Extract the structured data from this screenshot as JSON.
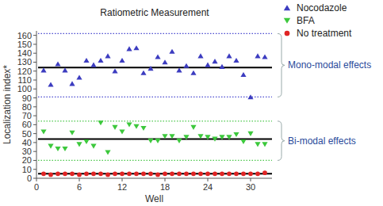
{
  "chart_data": {
    "type": "scatter",
    "title": "Ratiometric Measurement",
    "x_label": "Well",
    "y_label": "Localization index*",
    "x": [
      1,
      2,
      3,
      4,
      5,
      6,
      7,
      8,
      9,
      10,
      11,
      12,
      13,
      14,
      15,
      16,
      17,
      18,
      19,
      20,
      21,
      22,
      23,
      24,
      25,
      26,
      27,
      28,
      29,
      30,
      31,
      32
    ],
    "series": [
      {
        "name": "Nocodazole",
        "color": "#3c3cc0",
        "marker": "triangle-up",
        "values": [
          121,
          105,
          128,
          121,
          106,
          113,
          132,
          127,
          132,
          137,
          120,
          132,
          145,
          146,
          118,
          123,
          136,
          130,
          142,
          121,
          126,
          118,
          137,
          127,
          131,
          125,
          137,
          132,
          116,
          91,
          137,
          136
        ]
      },
      {
        "name": "BFA",
        "color": "#3cc83c",
        "marker": "triangle-down",
        "values": [
          52,
          36,
          33,
          33,
          51,
          38,
          41,
          36,
          62,
          29,
          57,
          52,
          60,
          58,
          56,
          42,
          42,
          47,
          47,
          42,
          46,
          57,
          47,
          46,
          44,
          46,
          46,
          49,
          41,
          50,
          38,
          38
        ]
      },
      {
        "name": "No treatment",
        "color": "#e02424",
        "marker": "circle",
        "values": [
          5,
          4,
          5,
          5,
          5,
          4,
          5,
          5,
          5,
          4,
          5,
          5,
          5,
          5,
          5,
          5,
          4,
          5,
          5,
          5,
          5,
          5,
          5,
          5,
          5,
          5,
          5,
          5,
          5,
          5,
          5,
          6
        ]
      }
    ],
    "lines": [
      {
        "value": 162,
        "color": "#4a4ad0",
        "line_style": "dotted"
      },
      {
        "value": 124,
        "color": "#000000",
        "line_style": "solid"
      },
      {
        "value": 91,
        "color": "#4a4ad0",
        "line_style": "dotted"
      },
      {
        "value": 64,
        "color": "#4cc84c",
        "line_style": "dotted"
      },
      {
        "value": 44,
        "color": "#000000",
        "line_style": "solid"
      },
      {
        "value": 20,
        "color": "#4cc84c",
        "line_style": "dotted"
      },
      {
        "value": 5,
        "color": "#000000",
        "line_style": "solid"
      }
    ],
    "annotations": [
      {
        "text": "Mono-modal effects",
        "from": 91,
        "to": 162,
        "color": "#2a4a9b"
      },
      {
        "text": "Bi-modal effects",
        "from": 20,
        "to": 64,
        "color": "#2a4a9b"
      }
    ],
    "xlim": [
      0,
      33
    ],
    "xticks": [
      0,
      6,
      12,
      18,
      24,
      30
    ],
    "ylim": [
      0,
      165
    ],
    "yticks": [
      0,
      10,
      20,
      30,
      40,
      50,
      60,
      70,
      80,
      90,
      100,
      110,
      120,
      130,
      140,
      150,
      160
    ],
    "legend": "upper right",
    "grid": false
  }
}
